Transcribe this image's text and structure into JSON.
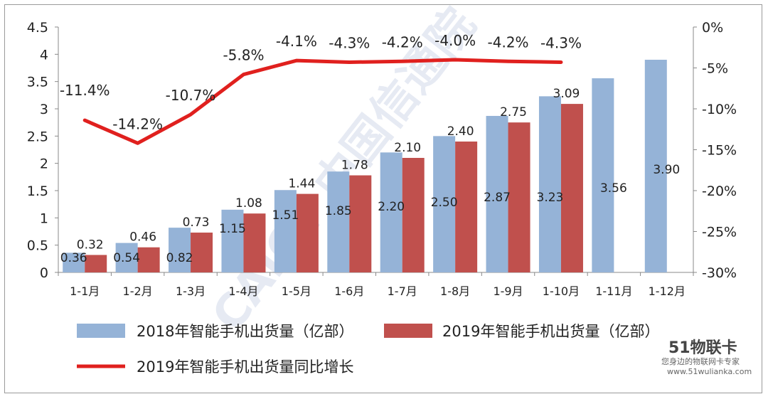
{
  "chart_data": {
    "type": "bar",
    "categories": [
      "1-1月",
      "1-2月",
      "1-3月",
      "1-4月",
      "1-5月",
      "1-6月",
      "1-7月",
      "1-8月",
      "1-9月",
      "1-10月",
      "1-11月",
      "1-12月"
    ],
    "series": [
      {
        "name": "2018年智能手机出货量（亿部）",
        "type": "bar",
        "axis": "left",
        "color": "#95b3d7",
        "values": [
          0.36,
          0.54,
          0.82,
          1.15,
          1.51,
          1.85,
          2.2,
          2.5,
          2.87,
          3.23,
          3.56,
          3.9
        ],
        "labels": [
          "0.36",
          "0.54",
          "0.82",
          "1.15",
          "1.51",
          "1.85",
          "2.20",
          "2.50",
          "2.87",
          "3.23",
          "3.56",
          "3.90"
        ]
      },
      {
        "name": "2019年智能手机出货量（亿部）",
        "type": "bar",
        "axis": "left",
        "color": "#c0504d",
        "values": [
          0.32,
          0.46,
          0.73,
          1.08,
          1.44,
          1.78,
          2.1,
          2.4,
          2.75,
          3.09,
          null,
          null
        ],
        "labels": [
          "0.32",
          "0.46",
          "0.73",
          "1.08",
          "1.44",
          "1.78",
          "2.10",
          "2.40",
          "2.75",
          "3.09",
          "",
          ""
        ]
      },
      {
        "name": "2019年智能手机出货量同比增长",
        "type": "line",
        "axis": "right",
        "color": "#e0201e",
        "values": [
          -11.4,
          -14.2,
          -10.7,
          -5.8,
          -4.1,
          -4.3,
          -4.2,
          -4.0,
          -4.2,
          -4.3,
          null,
          null
        ],
        "labels": [
          "-11.4%",
          "-14.2%",
          "-10.7%",
          "-5.8%",
          "-4.1%",
          "-4.3%",
          "-4.2%",
          "-4.0%",
          "-4.2%",
          "-4.3%",
          "",
          ""
        ]
      }
    ],
    "y_left": {
      "min": 0,
      "max": 4.5,
      "ticks": [
        "0",
        "0.5",
        "1",
        "1.5",
        "2",
        "2.5",
        "3",
        "3.5",
        "4",
        "4.5"
      ]
    },
    "y_right": {
      "min": -30,
      "max": 0,
      "ticks": [
        "-30%",
        "-25%",
        "-20%",
        "-15%",
        "-10%",
        "-5%",
        "0%"
      ]
    },
    "legend_placement": "bottom",
    "grid": false
  },
  "watermark": {
    "text": "CAICT 中国信通院"
  },
  "corner_logo": {
    "main": "51物联卡",
    "sub": "您身边的物联网卡专家",
    "url": "www.51wulianka.com"
  }
}
